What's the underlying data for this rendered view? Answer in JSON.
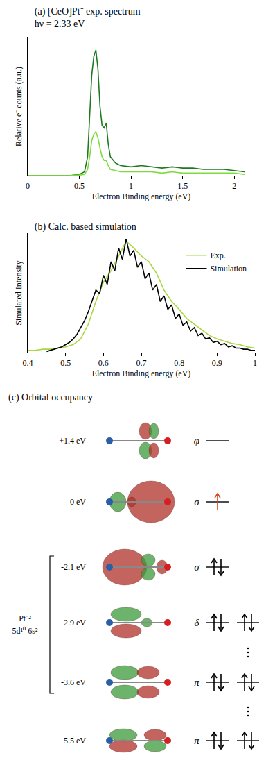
{
  "chart_data": [
    {
      "type": "line",
      "title": "(a) [CeO]Pt⁻ exp. spectrum",
      "subtitle": "hν = 2.33 eV",
      "x_label": "Electron Binding energy (eV)",
      "y_label": "Relative e⁻ counts (a.u.)",
      "xlim": [
        0,
        2.2
      ],
      "xticks": [
        0,
        0.5,
        1,
        1.5,
        2
      ],
      "ylim": [
        0,
        1.1
      ],
      "grid": false,
      "tick_labels": "x",
      "series": [
        {
          "color": "#1f7a1f",
          "x": [
            0,
            0.1,
            0.2,
            0.3,
            0.4,
            0.5,
            0.55,
            0.58,
            0.6,
            0.62,
            0.64,
            0.66,
            0.68,
            0.7,
            0.72,
            0.74,
            0.76,
            0.78,
            0.8,
            0.85,
            0.9,
            1.0,
            1.1,
            1.2,
            1.3,
            1.4,
            1.5,
            1.6,
            1.7,
            1.8,
            1.9,
            2.0,
            2.1
          ],
          "values": [
            0,
            0,
            0,
            0,
            0,
            0.01,
            0.03,
            0.15,
            0.45,
            0.8,
            0.95,
            1.0,
            0.85,
            0.55,
            0.4,
            0.38,
            0.42,
            0.25,
            0.15,
            0.1,
            0.08,
            0.07,
            0.08,
            0.07,
            0.06,
            0.07,
            0.06,
            0.06,
            0.05,
            0.05,
            0.05,
            0.04,
            0.03
          ]
        },
        {
          "color": "#7ddc3c",
          "x": [
            0,
            0.1,
            0.2,
            0.3,
            0.4,
            0.5,
            0.55,
            0.58,
            0.6,
            0.62,
            0.64,
            0.66,
            0.68,
            0.7,
            0.72,
            0.74,
            0.76,
            0.78,
            0.8,
            0.85,
            0.9,
            1.0,
            1.1,
            1.2,
            1.3,
            1.4,
            1.5,
            1.6,
            1.7,
            1.8,
            1.9,
            2.0,
            2.1
          ],
          "values": [
            0,
            0,
            0,
            0,
            0,
            0.005,
            0.01,
            0.05,
            0.15,
            0.28,
            0.33,
            0.35,
            0.3,
            0.22,
            0.15,
            0.12,
            0.12,
            0.08,
            0.05,
            0.04,
            0.03,
            0.03,
            0.03,
            0.03,
            0.02,
            0.03,
            0.02,
            0.02,
            0.02,
            0.02,
            0.02,
            0.02,
            0.01
          ]
        }
      ]
    },
    {
      "type": "line",
      "title": "(b) Calc. based simulation",
      "x_label": "Electron Binding energy (eV)",
      "y_label": "Simulated Intensity",
      "xlim": [
        0.4,
        1
      ],
      "xticks": [
        0.4,
        0.5,
        0.6,
        0.7,
        0.8,
        0.9,
        1
      ],
      "ylim": [
        0,
        1.05
      ],
      "grid": false,
      "tick_labels": "x",
      "legend": "upper right",
      "series": [
        {
          "name": "Exp.",
          "color": "#a8d840",
          "x": [
            0.4,
            0.42,
            0.44,
            0.46,
            0.48,
            0.5,
            0.52,
            0.54,
            0.56,
            0.58,
            0.6,
            0.62,
            0.64,
            0.66,
            0.68,
            0.7,
            0.72,
            0.74,
            0.76,
            0.78,
            0.8,
            0.82,
            0.84,
            0.86,
            0.88,
            0.9,
            0.92,
            0.94,
            0.96,
            0.98,
            1.0
          ],
          "values": [
            0.02,
            0.02,
            0.03,
            0.03,
            0.04,
            0.05,
            0.07,
            0.12,
            0.25,
            0.45,
            0.62,
            0.72,
            0.85,
            0.98,
            0.92,
            0.85,
            0.8,
            0.7,
            0.55,
            0.45,
            0.38,
            0.3,
            0.25,
            0.2,
            0.15,
            0.12,
            0.1,
            0.08,
            0.07,
            0.05,
            0.04
          ]
        },
        {
          "name": "Simulation",
          "color": "#000000",
          "x": [
            0.45,
            0.46,
            0.47,
            0.48,
            0.49,
            0.5,
            0.51,
            0.52,
            0.53,
            0.54,
            0.55,
            0.56,
            0.57,
            0.58,
            0.59,
            0.6,
            0.61,
            0.62,
            0.63,
            0.64,
            0.65,
            0.66,
            0.67,
            0.68,
            0.69,
            0.7,
            0.71,
            0.72,
            0.73,
            0.74,
            0.75,
            0.76,
            0.77,
            0.78,
            0.79,
            0.8,
            0.81,
            0.82,
            0.83,
            0.84,
            0.85,
            0.86,
            0.87,
            0.88,
            0.89,
            0.9,
            0.91,
            0.92,
            0.93,
            0.94,
            0.95,
            0.96,
            0.97,
            0.98,
            0.99,
            1.0
          ],
          "values": [
            0.01,
            0.02,
            0.03,
            0.04,
            0.05,
            0.07,
            0.09,
            0.12,
            0.16,
            0.22,
            0.28,
            0.36,
            0.45,
            0.55,
            0.52,
            0.68,
            0.6,
            0.8,
            0.72,
            0.92,
            0.82,
            1.0,
            0.85,
            0.9,
            0.75,
            0.8,
            0.65,
            0.7,
            0.55,
            0.6,
            0.45,
            0.5,
            0.38,
            0.42,
            0.3,
            0.34,
            0.24,
            0.27,
            0.19,
            0.22,
            0.15,
            0.17,
            0.12,
            0.13,
            0.09,
            0.1,
            0.07,
            0.08,
            0.05,
            0.06,
            0.04,
            0.04,
            0.03,
            0.03,
            0.02,
            0.02
          ]
        }
      ]
    }
  ],
  "diagram": {
    "title": "(c) Orbital occupancy",
    "bracket_text": [
      "Pt⁻²",
      "5d¹⁰ 6s²"
    ],
    "levels": [
      {
        "energy": "+1.4 eV",
        "symmetry": "φ",
        "occupancy": [
          0
        ],
        "bracket": false
      },
      {
        "energy": "0 eV",
        "symmetry": "σ",
        "occupancy": [
          1
        ],
        "bracket": false
      },
      {
        "energy": "-2.1 eV",
        "symmetry": "σ",
        "occupancy": [
          2
        ],
        "bracket": true
      },
      {
        "energy": "-2.9 eV",
        "symmetry": "δ",
        "occupancy": [
          2,
          2
        ],
        "bracket": true
      },
      {
        "energy": "-3.6 eV",
        "symmetry": "π",
        "occupancy": [
          2,
          2
        ],
        "bracket": true
      },
      {
        "energy": "-5.5 eV",
        "symmetry": "π",
        "occupancy": [
          2,
          2
        ],
        "bracket": false
      }
    ]
  }
}
